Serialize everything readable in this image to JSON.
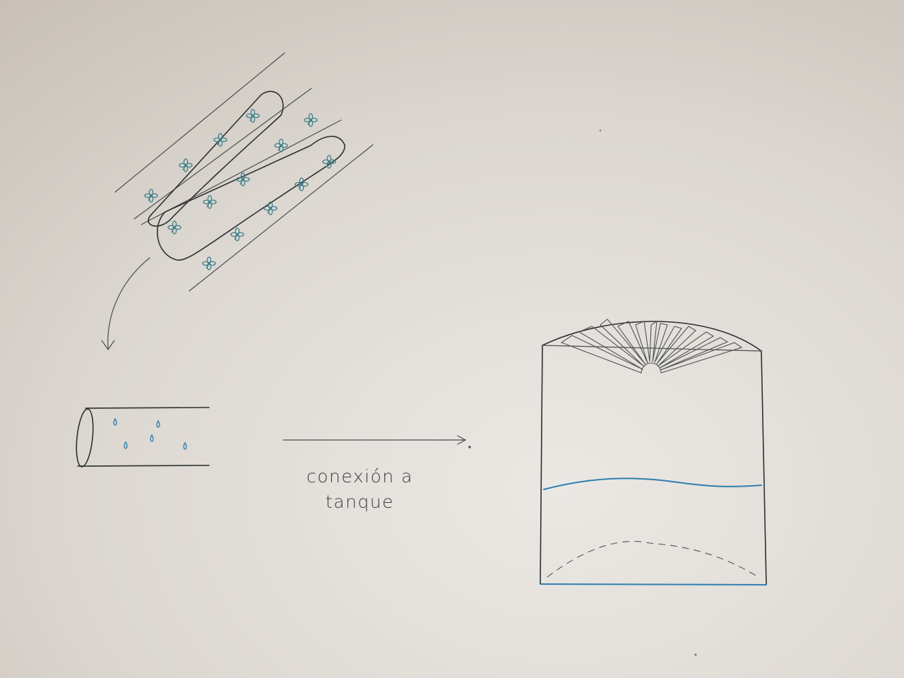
{
  "diagram": {
    "label": {
      "line1": "conexión a",
      "line2": "tanque"
    },
    "colors": {
      "paper_light": "#e9e6e2",
      "paper_dark": "#c9c1b9",
      "ink": "#2b3131",
      "water_blue": "#2f7fb0",
      "plant_teal": "#3d7f8a"
    },
    "icons": {
      "plant": "four-leaf-plant-icon",
      "droplet": "water-droplet-icon",
      "arrow": "arrow-head-icon"
    }
  }
}
